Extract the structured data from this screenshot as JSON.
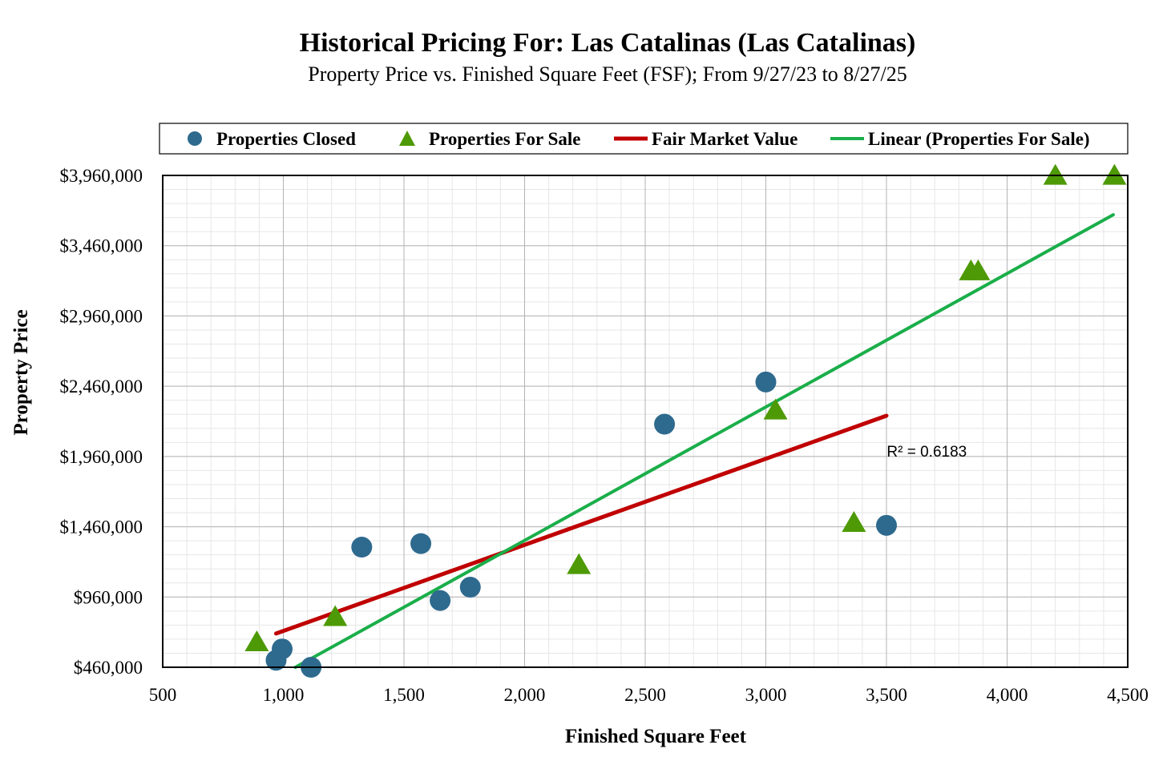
{
  "chart_data": {
    "type": "scatter",
    "title": "Historical Pricing For: Las Catalinas (Las Catalinas)",
    "subtitle": "Property Price vs. Finished Square Feet (FSF); From 9/27/23 to 8/27/25",
    "xlabel": "Finished Square Feet",
    "ylabel": "Property Price",
    "xlim": [
      500,
      4500
    ],
    "ylim": [
      460000,
      3960000
    ],
    "x_ticks": [
      500,
      1000,
      1500,
      2000,
      2500,
      3000,
      3500,
      4000,
      4500
    ],
    "x_tick_labels": [
      "500",
      "1,000",
      "1,500",
      "2,000",
      "2,500",
      "3,000",
      "3,500",
      "4,000",
      "4,500"
    ],
    "y_ticks": [
      460000,
      960000,
      1460000,
      1960000,
      2460000,
      2960000,
      3460000,
      3960000
    ],
    "y_tick_labels": [
      "$460,000",
      "$960,000",
      "$1,460,000",
      "$1,960,000",
      "$2,460,000",
      "$2,960,000",
      "$3,460,000",
      "$3,960,000"
    ],
    "grid": true,
    "legend_position": "top",
    "series": [
      {
        "name": "Properties Closed",
        "marker": "circle",
        "color": "#2E6A8E",
        "points": [
          {
            "x": 970,
            "y": 510000
          },
          {
            "x": 995,
            "y": 590000
          },
          {
            "x": 1115,
            "y": 460000
          },
          {
            "x": 1325,
            "y": 1315000
          },
          {
            "x": 1570,
            "y": 1340000
          },
          {
            "x": 1650,
            "y": 935000
          },
          {
            "x": 1775,
            "y": 1030000
          },
          {
            "x": 2580,
            "y": 2190000
          },
          {
            "x": 3000,
            "y": 2490000
          },
          {
            "x": 3500,
            "y": 1470000
          }
        ]
      },
      {
        "name": "Properties For Sale",
        "marker": "triangle",
        "color": "#4E9A06",
        "points": [
          {
            "x": 890,
            "y": 630000
          },
          {
            "x": 1215,
            "y": 810000
          },
          {
            "x": 2225,
            "y": 1180000
          },
          {
            "x": 3040,
            "y": 2280000
          },
          {
            "x": 3365,
            "y": 1480000
          },
          {
            "x": 3850,
            "y": 3270000
          },
          {
            "x": 3880,
            "y": 3270000
          },
          {
            "x": 4200,
            "y": 3950000
          },
          {
            "x": 4445,
            "y": 3950000
          }
        ]
      },
      {
        "name": "Fair Market Value",
        "type": "line",
        "color": "#C00000",
        "points": [
          {
            "x": 970,
            "y": 700000
          },
          {
            "x": 3500,
            "y": 2250000
          }
        ]
      },
      {
        "name": "Linear (Properties For Sale)",
        "type": "line",
        "color": "#1AAE4A",
        "points": [
          {
            "x": 1050,
            "y": 460000
          },
          {
            "x": 4440,
            "y": 3680000
          }
        ]
      }
    ],
    "annotations": [
      {
        "text": "R² = 0.6183",
        "x": 3900,
        "y": 2000000
      }
    ]
  }
}
